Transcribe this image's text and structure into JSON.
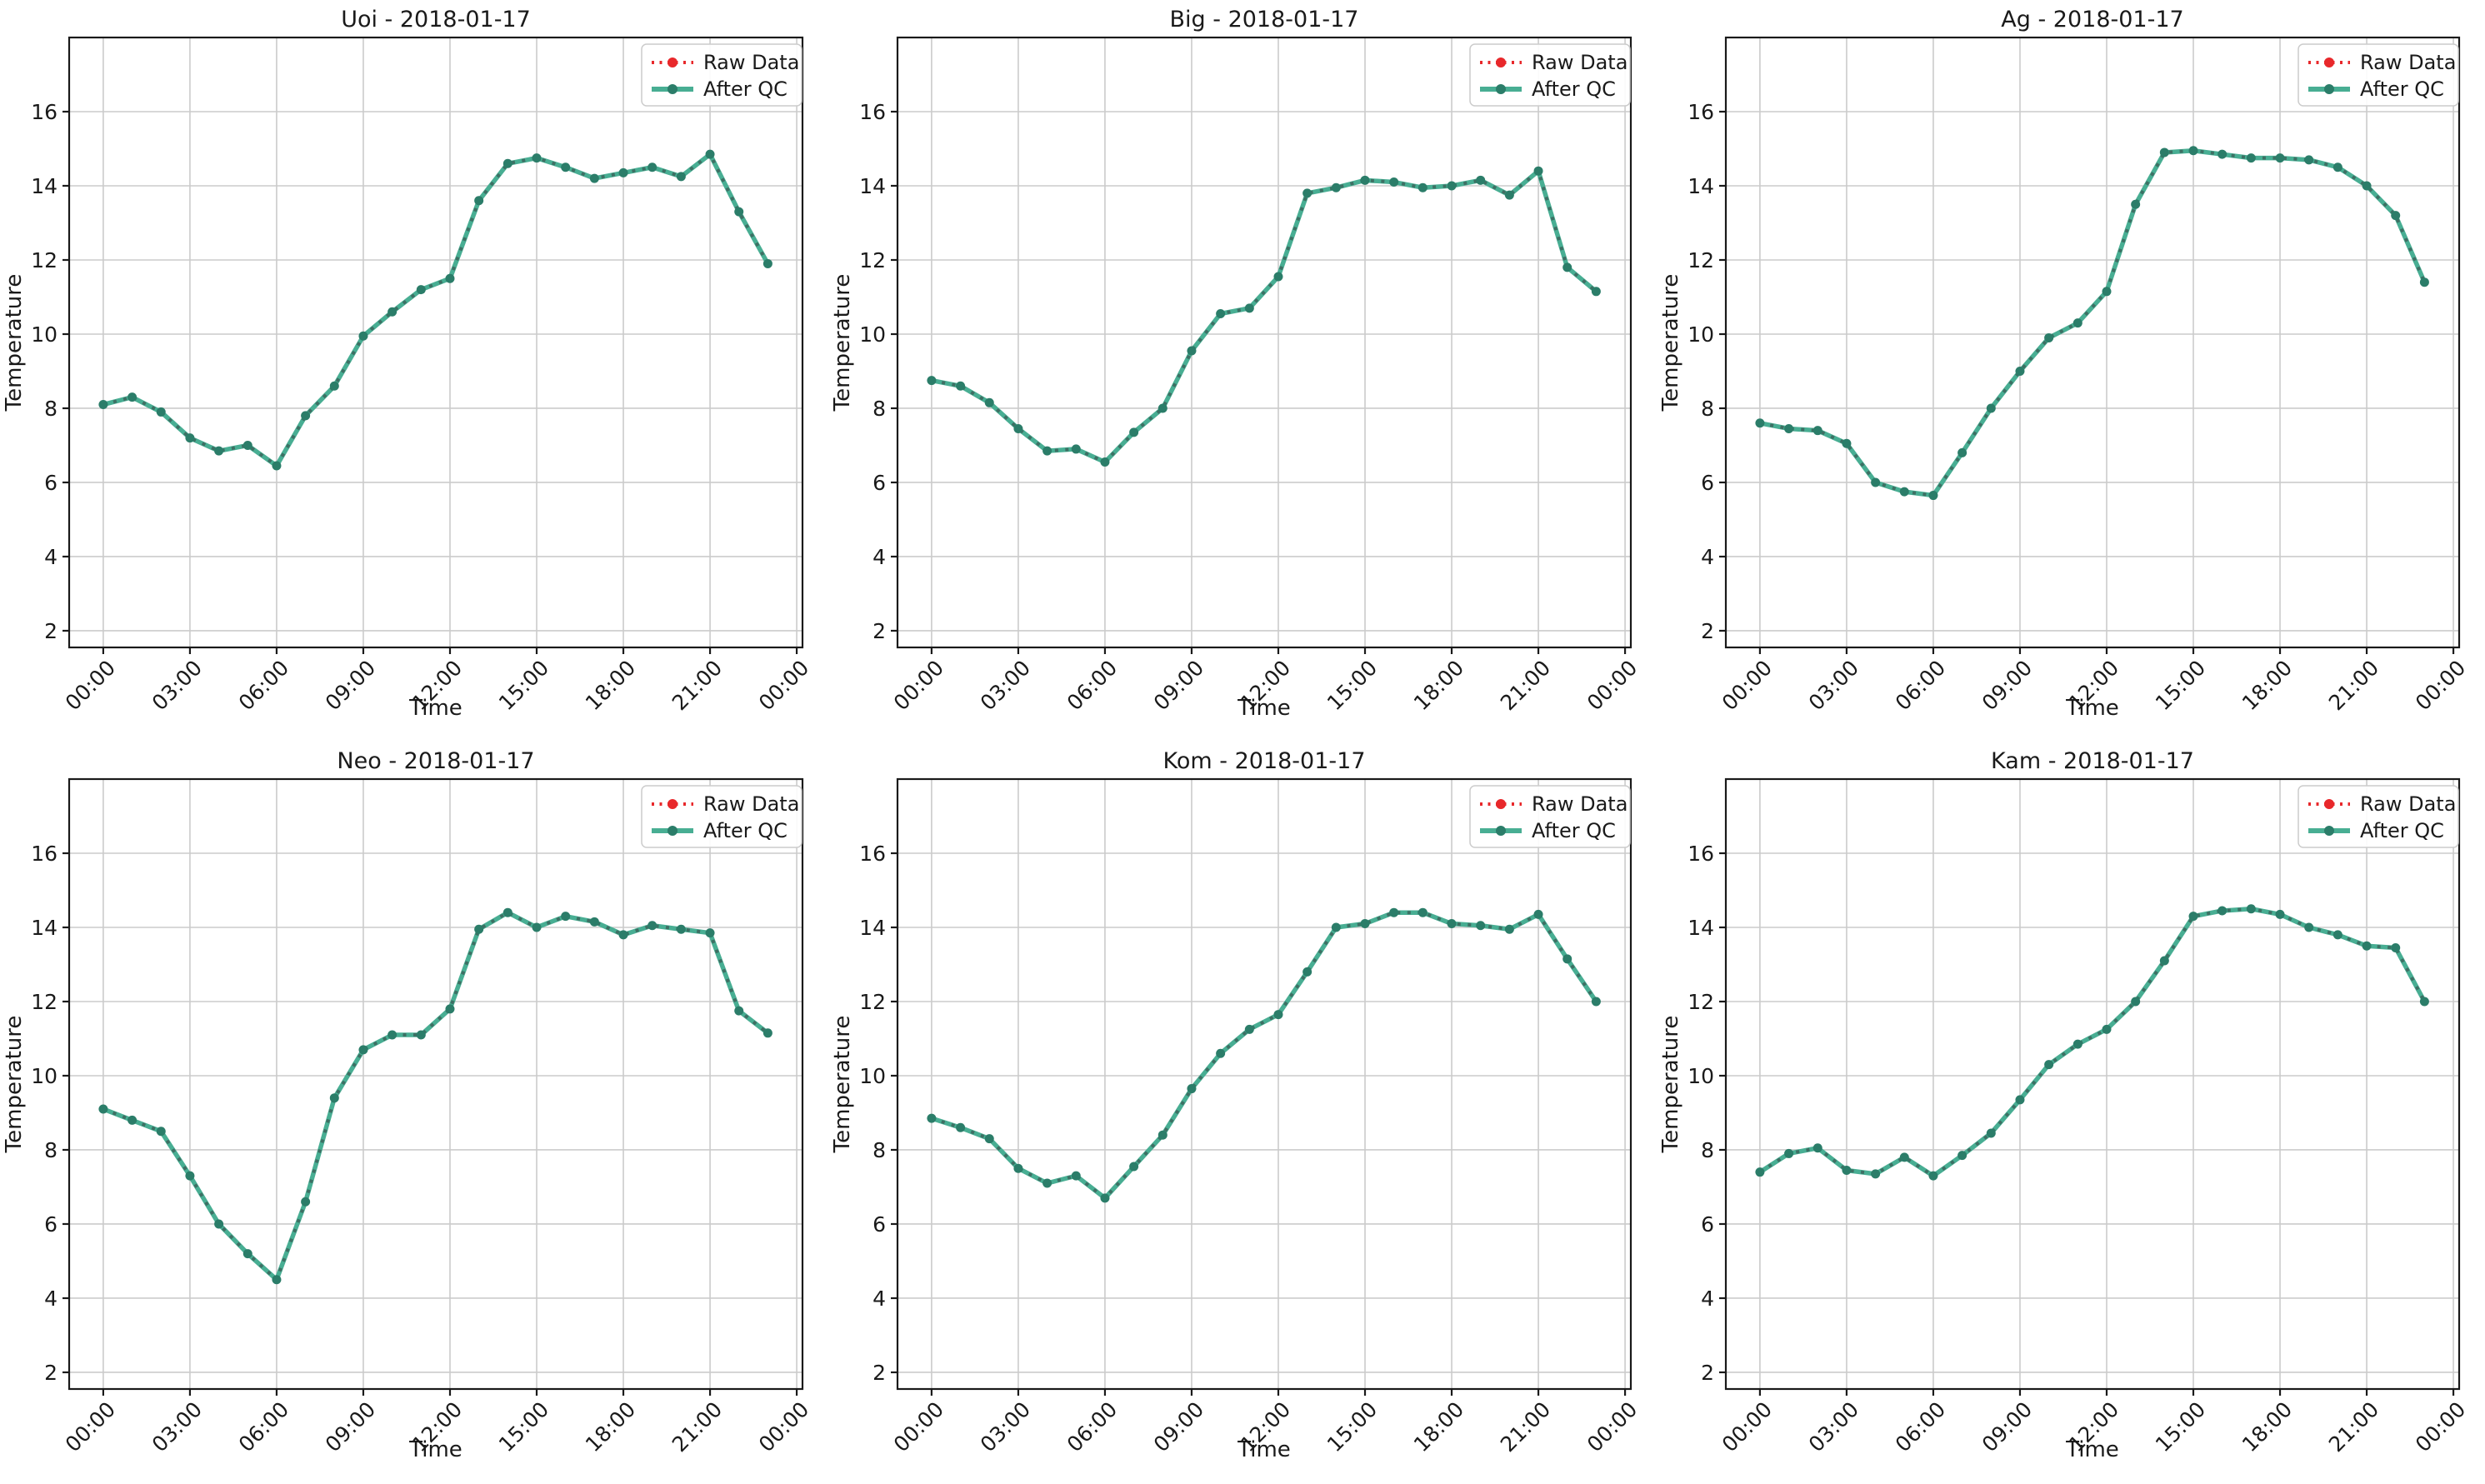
{
  "figure": {
    "rows": 2,
    "cols": 3,
    "date": "2018-01-17",
    "xlabel": "Time",
    "ylabel": "Temperature",
    "legend": {
      "raw_label": "Raw Data",
      "qc_label": "After QC"
    },
    "colors": {
      "raw_red": "#E8282B",
      "qc_teal": "#48AE93",
      "qc_marker": "#2B7D69",
      "overlap_dash": "#3D7064",
      "grid": "#CBCBCB",
      "spine": "#1A1A1A",
      "text": "#1A1A1A",
      "legend_border": "#CCCCCC",
      "background": "#FFFFFF"
    },
    "xtick_labels": [
      "00:00",
      "03:00",
      "06:00",
      "09:00",
      "12:00",
      "15:00",
      "18:00",
      "21:00",
      "00:00"
    ],
    "xtick_hours": [
      0,
      3,
      6,
      9,
      12,
      15,
      18,
      21,
      24
    ],
    "yticks": [
      2,
      4,
      6,
      8,
      10,
      12,
      14,
      16
    ],
    "xlim": [
      -1.18,
      24.2
    ],
    "ylim": [
      1.55,
      18.0
    ]
  },
  "chart_data": [
    {
      "type": "line",
      "station": "Uoi",
      "title": "Uoi - 2018-01-17",
      "xlabel": "Time",
      "ylabel": "Temperature",
      "x_hours": [
        0,
        1,
        2,
        3,
        4,
        5,
        6,
        7,
        8,
        9,
        10,
        11,
        12,
        13,
        14,
        15,
        16,
        17,
        18,
        19,
        20,
        21,
        22,
        23
      ],
      "series": [
        {
          "name": "Raw Data",
          "linestyle": "dotted",
          "color": "#E8282B",
          "values": [
            8.1,
            8.3,
            7.9,
            7.2,
            6.85,
            7.0,
            6.45,
            7.8,
            8.6,
            9.95,
            10.6,
            11.2,
            11.5,
            13.6,
            14.6,
            14.75,
            14.5,
            14.2,
            14.35,
            14.5,
            14.25,
            14.85,
            13.3,
            11.9
          ]
        },
        {
          "name": "After QC",
          "linestyle": "solid",
          "color": "#48AE93",
          "values": [
            8.1,
            8.3,
            7.9,
            7.2,
            6.85,
            7.0,
            6.45,
            7.8,
            8.6,
            9.95,
            10.6,
            11.2,
            11.5,
            13.6,
            14.6,
            14.75,
            14.5,
            14.2,
            14.35,
            14.5,
            14.25,
            14.85,
            13.3,
            11.9
          ]
        }
      ]
    },
    {
      "type": "line",
      "station": "Big",
      "title": "Big - 2018-01-17",
      "xlabel": "Time",
      "ylabel": "Temperature",
      "x_hours": [
        0,
        1,
        2,
        3,
        4,
        5,
        6,
        7,
        8,
        9,
        10,
        11,
        12,
        13,
        14,
        15,
        16,
        17,
        18,
        19,
        20,
        21,
        22,
        23
      ],
      "series": [
        {
          "name": "Raw Data",
          "linestyle": "dotted",
          "color": "#E8282B",
          "values": [
            8.75,
            8.6,
            8.15,
            7.45,
            6.85,
            6.9,
            6.55,
            7.35,
            8.0,
            9.55,
            10.55,
            10.7,
            11.55,
            13.8,
            13.95,
            14.15,
            14.1,
            13.95,
            14.0,
            14.15,
            13.75,
            14.4,
            11.8,
            11.15
          ]
        },
        {
          "name": "After QC",
          "linestyle": "solid",
          "color": "#48AE93",
          "values": [
            8.75,
            8.6,
            8.15,
            7.45,
            6.85,
            6.9,
            6.55,
            7.35,
            8.0,
            9.55,
            10.55,
            10.7,
            11.55,
            13.8,
            13.95,
            14.15,
            14.1,
            13.95,
            14.0,
            14.15,
            13.75,
            14.4,
            11.8,
            11.15
          ]
        }
      ]
    },
    {
      "type": "line",
      "station": "Ag",
      "title": "Ag - 2018-01-17",
      "xlabel": "Time",
      "ylabel": "Temperature",
      "x_hours": [
        0,
        1,
        2,
        3,
        4,
        5,
        6,
        7,
        8,
        9,
        10,
        11,
        12,
        13,
        14,
        15,
        16,
        17,
        18,
        19,
        20,
        21,
        22,
        23
      ],
      "series": [
        {
          "name": "Raw Data",
          "linestyle": "dotted",
          "color": "#E8282B",
          "values": [
            7.6,
            7.45,
            7.4,
            7.05,
            6.0,
            5.75,
            5.65,
            6.8,
            8.0,
            9.0,
            9.9,
            10.3,
            11.15,
            13.5,
            14.9,
            14.95,
            14.85,
            14.75,
            14.75,
            14.7,
            14.5,
            14.0,
            13.2,
            11.4
          ]
        },
        {
          "name": "After QC",
          "linestyle": "solid",
          "color": "#48AE93",
          "values": [
            7.6,
            7.45,
            7.4,
            7.05,
            6.0,
            5.75,
            5.65,
            6.8,
            8.0,
            9.0,
            9.9,
            10.3,
            11.15,
            13.5,
            14.9,
            14.95,
            14.85,
            14.75,
            14.75,
            14.7,
            14.5,
            14.0,
            13.2,
            11.4
          ]
        }
      ]
    },
    {
      "type": "line",
      "station": "Neo",
      "title": "Neo - 2018-01-17",
      "xlabel": "Time",
      "ylabel": "Temperature",
      "x_hours": [
        0,
        1,
        2,
        3,
        4,
        5,
        6,
        7,
        8,
        9,
        10,
        11,
        12,
        13,
        14,
        15,
        16,
        17,
        18,
        19,
        20,
        21,
        22,
        23
      ],
      "series": [
        {
          "name": "Raw Data",
          "linestyle": "dotted",
          "color": "#E8282B",
          "values": [
            9.1,
            8.8,
            8.5,
            7.3,
            6.0,
            5.2,
            4.5,
            6.6,
            9.4,
            10.7,
            11.1,
            11.1,
            11.8,
            13.95,
            14.4,
            14.0,
            14.3,
            14.15,
            13.8,
            14.05,
            13.95,
            13.85,
            11.75,
            11.15
          ]
        },
        {
          "name": "After QC",
          "linestyle": "solid",
          "color": "#48AE93",
          "values": [
            9.1,
            8.8,
            8.5,
            7.3,
            6.0,
            5.2,
            4.5,
            6.6,
            9.4,
            10.7,
            11.1,
            11.1,
            11.8,
            13.95,
            14.4,
            14.0,
            14.3,
            14.15,
            13.8,
            14.05,
            13.95,
            13.85,
            11.75,
            11.15
          ]
        }
      ]
    },
    {
      "type": "line",
      "station": "Kom",
      "title": "Kom - 2018-01-17",
      "xlabel": "Time",
      "ylabel": "Temperature",
      "x_hours": [
        0,
        1,
        2,
        3,
        4,
        5,
        6,
        7,
        8,
        9,
        10,
        11,
        12,
        13,
        14,
        15,
        16,
        17,
        18,
        19,
        20,
        21,
        22,
        23
      ],
      "series": [
        {
          "name": "Raw Data",
          "linestyle": "dotted",
          "color": "#E8282B",
          "values": [
            8.85,
            8.6,
            8.3,
            7.5,
            7.1,
            7.3,
            6.7,
            7.55,
            8.4,
            9.65,
            10.6,
            11.25,
            11.65,
            12.8,
            14.0,
            14.1,
            14.4,
            14.4,
            14.1,
            14.05,
            13.95,
            14.35,
            13.15,
            12.0
          ]
        },
        {
          "name": "After QC",
          "linestyle": "solid",
          "color": "#48AE93",
          "values": [
            8.85,
            8.6,
            8.3,
            7.5,
            7.1,
            7.3,
            6.7,
            7.55,
            8.4,
            9.65,
            10.6,
            11.25,
            11.65,
            12.8,
            14.0,
            14.1,
            14.4,
            14.4,
            14.1,
            14.05,
            13.95,
            14.35,
            13.15,
            12.0
          ]
        }
      ]
    },
    {
      "type": "line",
      "station": "Kam",
      "title": "Kam - 2018-01-17",
      "xlabel": "Time",
      "ylabel": "Temperature",
      "x_hours": [
        0,
        1,
        2,
        3,
        4,
        5,
        6,
        7,
        8,
        9,
        10,
        11,
        12,
        13,
        14,
        15,
        16,
        17,
        18,
        19,
        20,
        21,
        22,
        23
      ],
      "series": [
        {
          "name": "Raw Data",
          "linestyle": "dotted",
          "color": "#E8282B",
          "values": [
            7.4,
            7.9,
            8.05,
            7.45,
            7.35,
            7.8,
            7.3,
            7.85,
            8.45,
            9.35,
            10.3,
            10.85,
            11.25,
            12.0,
            13.1,
            14.3,
            14.45,
            14.5,
            14.35,
            14.0,
            13.8,
            13.5,
            13.45,
            12.0
          ]
        },
        {
          "name": "After QC",
          "linestyle": "solid",
          "color": "#48AE93",
          "values": [
            7.4,
            7.9,
            8.05,
            7.45,
            7.35,
            7.8,
            7.3,
            7.85,
            8.45,
            9.35,
            10.3,
            10.85,
            11.25,
            12.0,
            13.1,
            14.3,
            14.45,
            14.5,
            14.35,
            14.0,
            13.8,
            13.5,
            13.45,
            12.0
          ]
        }
      ]
    }
  ]
}
